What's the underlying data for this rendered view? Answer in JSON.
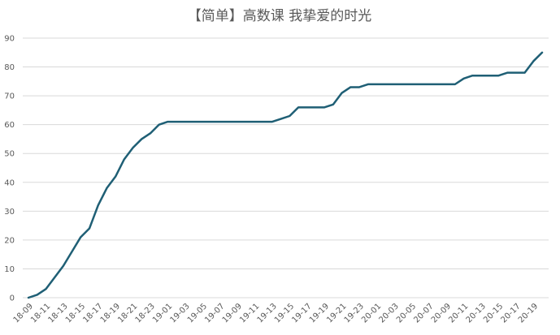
{
  "chart_data": {
    "type": "line",
    "title": "【简单】高数课 我挚爱的时光",
    "categories": [
      "18-09",
      null,
      "18-11",
      null,
      "18-13",
      null,
      "18-15",
      null,
      "18-17",
      null,
      "18-19",
      null,
      "18-21",
      null,
      "18-23",
      null,
      "19-01",
      null,
      "19-03",
      null,
      "19-05",
      null,
      "19-07",
      null,
      "19-09",
      null,
      "19-11",
      null,
      "19-13",
      null,
      "19-15",
      null,
      "19-17",
      null,
      "19-19",
      null,
      "19-21",
      null,
      "19-23",
      null,
      "20-01",
      null,
      "20-03",
      null,
      "20-05",
      null,
      "20-07",
      null,
      "20-09",
      null,
      "20-11",
      null,
      "20-13",
      null,
      "20-15",
      null,
      "20-17",
      null,
      "20-19",
      null
    ],
    "values": [
      0,
      1,
      3,
      7,
      11,
      16,
      21,
      24,
      32,
      38,
      42,
      48,
      52,
      55,
      57,
      60,
      61,
      61,
      61,
      61,
      61,
      61,
      61,
      61,
      61,
      61,
      61,
      61,
      61,
      62,
      63,
      66,
      66,
      66,
      66,
      67,
      71,
      73,
      73,
      74,
      74,
      74,
      74,
      74,
      74,
      74,
      74,
      74,
      74,
      74,
      76,
      77,
      77,
      77,
      77,
      78,
      78,
      78,
      82,
      85
    ],
    "color": "#1f5f75",
    "ylim": [
      0,
      90
    ],
    "yticks": [
      0,
      10,
      20,
      30,
      40,
      50,
      60,
      70,
      80,
      90
    ],
    "grid": true
  }
}
